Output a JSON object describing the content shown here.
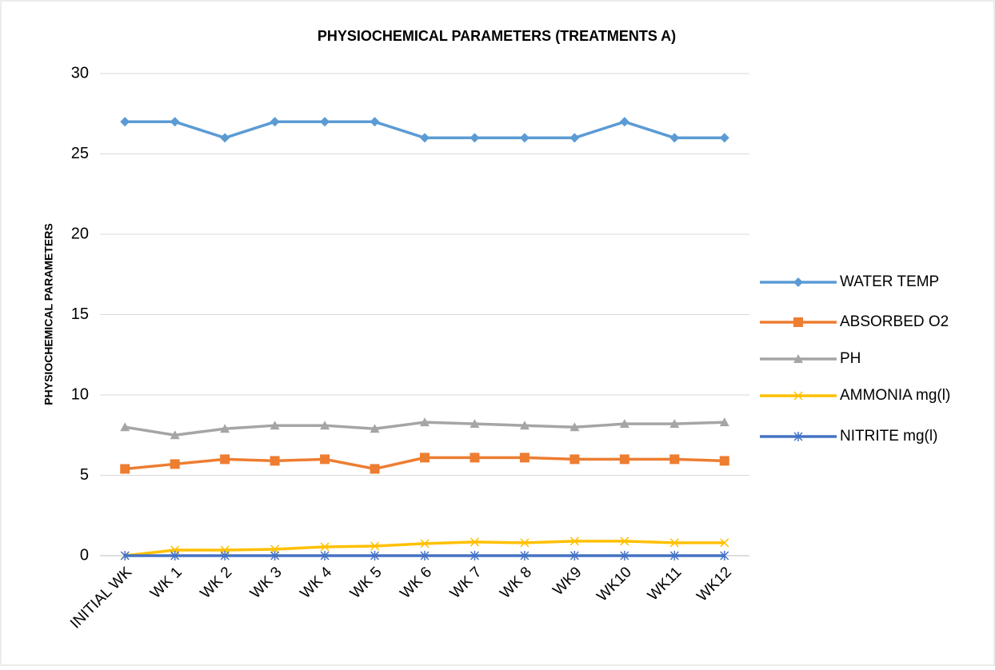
{
  "chart_data": {
    "type": "line",
    "title": "PHYSIOCHEMICAL PARAMETERS (TREATMENTS A)",
    "y_label": "PHYSIOCHEMICAL PARAMETERS",
    "categories": [
      "INITIAL WK",
      "WK 1",
      "WK 2",
      "WK 3",
      "WK 4",
      "WK 5",
      "WK 6",
      "WK 7",
      "WK 8",
      "WK9",
      "WK10",
      "WK11",
      "WK12"
    ],
    "series": [
      {
        "name": "WATER TEMP",
        "color": "#5b9bd5",
        "marker": "diamond",
        "values": [
          27,
          27,
          26,
          27,
          27,
          27,
          26,
          26,
          26,
          26,
          27,
          26,
          26
        ]
      },
      {
        "name": "ABSORBED O2",
        "color": "#ed7d31",
        "marker": "square",
        "values": [
          5.4,
          5.7,
          6.0,
          5.9,
          6.0,
          5.4,
          6.1,
          6.1,
          6.1,
          6.0,
          6.0,
          6.0,
          5.9
        ]
      },
      {
        "name": "PH",
        "color": "#a5a5a5",
        "marker": "triangle",
        "values": [
          8.0,
          7.5,
          7.9,
          8.1,
          8.1,
          7.9,
          8.3,
          8.2,
          8.1,
          8.0,
          8.2,
          8.2,
          8.3
        ]
      },
      {
        "name": "AMMONIA mg(l)",
        "color": "#ffc000",
        "marker": "x",
        "values": [
          0,
          0.35,
          0.35,
          0.4,
          0.55,
          0.6,
          0.75,
          0.85,
          0.8,
          0.9,
          0.9,
          0.8,
          0.8
        ]
      },
      {
        "name": "NITRITE mg(l)",
        "color": "#4472c4",
        "marker": "star",
        "values": [
          0,
          0,
          0,
          0,
          0,
          0,
          0,
          0,
          0,
          0,
          0,
          0,
          0
        ]
      }
    ],
    "ylim": [
      0,
      30
    ],
    "yticks": [
      0,
      5,
      10,
      15,
      20,
      25,
      30
    ],
    "grid": true,
    "legend": "right"
  }
}
